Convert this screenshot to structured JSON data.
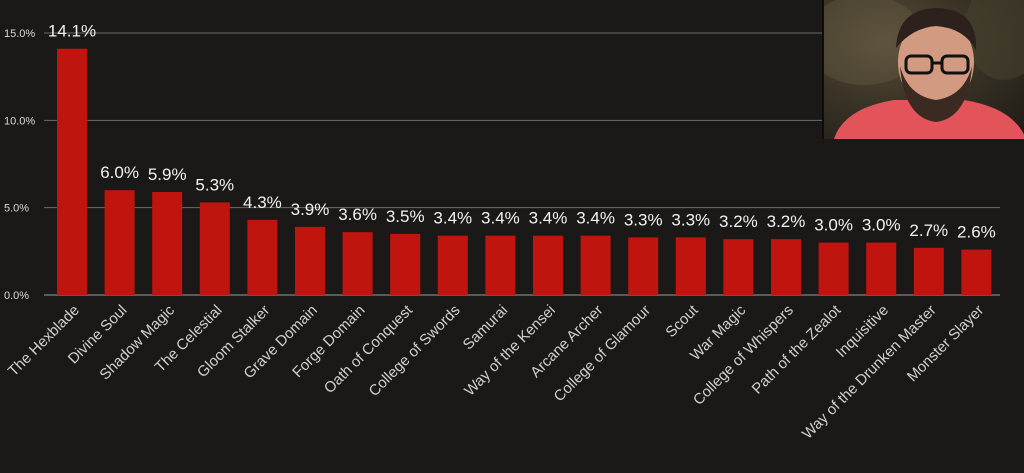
{
  "chart_data": {
    "type": "bar",
    "title": "",
    "xlabel": "",
    "ylabel": "",
    "ylim": [
      0,
      15
    ],
    "yticks": [
      {
        "value": 0,
        "label": "0.0%"
      },
      {
        "value": 5,
        "label": "5.0%"
      },
      {
        "value": 10,
        "label": "10.0%"
      },
      {
        "value": 15,
        "label": "15.0%"
      }
    ],
    "grid": true,
    "bar_color": "#c0140e",
    "categories": [
      "The Hexblade",
      "Divine Soul",
      "Shadow Magic",
      "The Celestial",
      "Gloom Stalker",
      "Grave Domain",
      "Forge Domain",
      "Oath of Conquest",
      "College of Swords",
      "Samurai",
      "Way of the Kensei",
      "Arcane Archer",
      "College of Glamour",
      "Scout",
      "War Magic",
      "College of Whispers",
      "Path of the Zealot",
      "Inquisitive",
      "Way of the Drunken Master",
      "Monster Slayer"
    ],
    "values": [
      14.1,
      6.0,
      5.9,
      5.3,
      4.3,
      3.9,
      3.6,
      3.5,
      3.4,
      3.4,
      3.4,
      3.4,
      3.3,
      3.3,
      3.2,
      3.2,
      3.0,
      3.0,
      2.7,
      2.6
    ],
    "labels": [
      "14.1%",
      "6.0%",
      "5.9%",
      "5.3%",
      "4.3%",
      "3.9%",
      "3.6%",
      "3.5%",
      "3.4%",
      "3.4%",
      "3.4%",
      "3.4%",
      "3.3%",
      "3.3%",
      "3.2%",
      "3.2%",
      "3.0%",
      "3.0%",
      "2.7%",
      "2.6%"
    ]
  },
  "webcam": {
    "description_icon": "webcam-presenter-icon"
  }
}
